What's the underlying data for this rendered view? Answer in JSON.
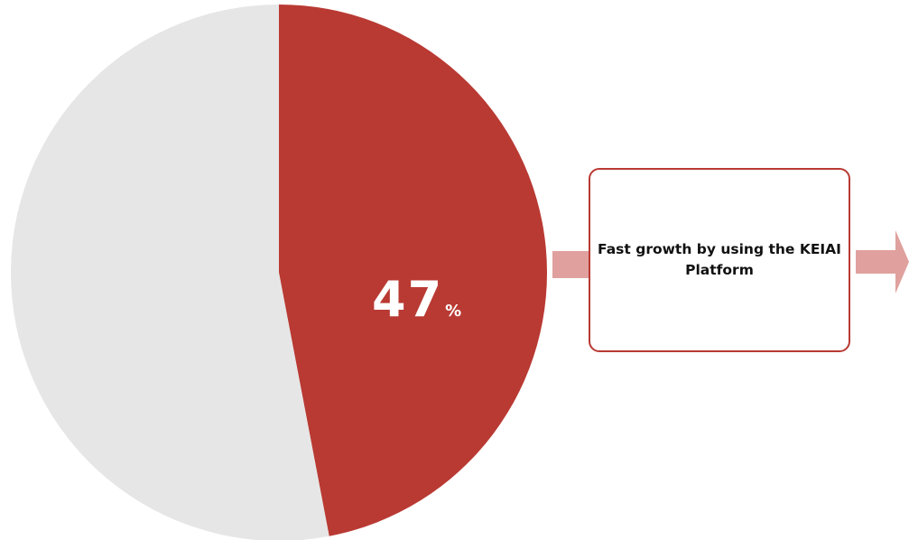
{
  "chart_data": {
    "type": "pie",
    "slices": [
      {
        "label": "",
        "value": 47,
        "color": "#b93a33"
      },
      {
        "label": "",
        "value": 53,
        "color": "#e6e6e6"
      }
    ],
    "start_angle_deg": 0,
    "direction": "clockwise",
    "data_label": {
      "value": "47",
      "unit": "%"
    }
  },
  "callout": {
    "text": "Fast growth by using the KEIAI Platform"
  },
  "colors": {
    "accent": "#b93a33",
    "arrow": "#e0a19e",
    "neutral": "#e6e6e6",
    "text": "#111111"
  }
}
